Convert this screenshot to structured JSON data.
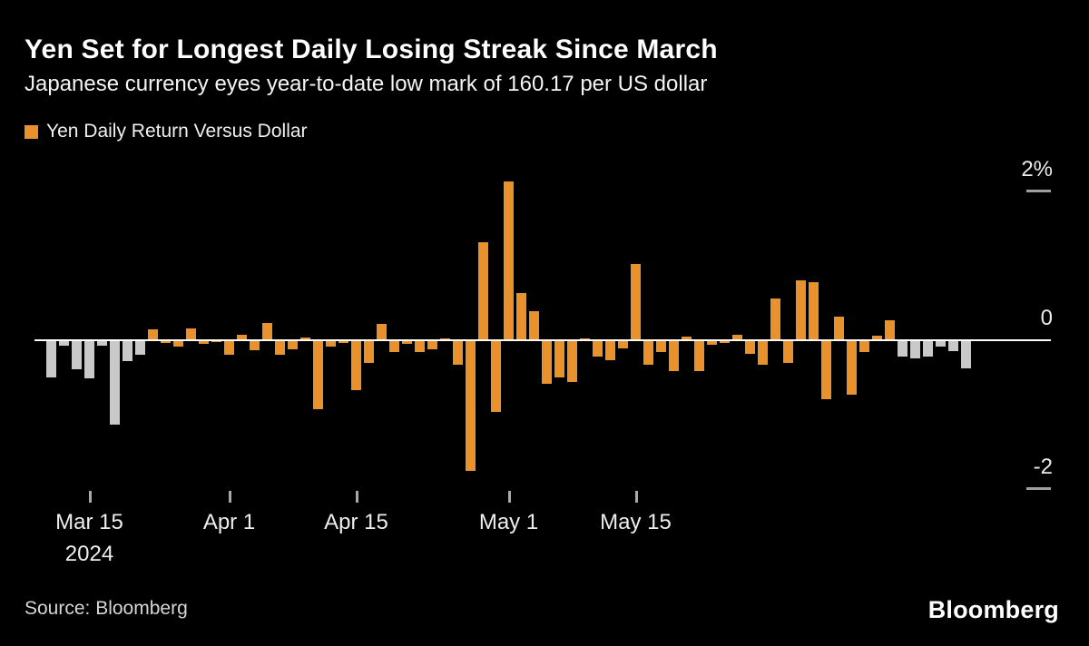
{
  "header": {
    "title": "Yen Set for Longest Daily Losing Streak Since March",
    "subtitle": "Japanese currency eyes year-to-date low mark of 160.17 per US dollar"
  },
  "legend": {
    "label": "Yen Daily Return Versus Dollar",
    "swatch_color": "#e8912d"
  },
  "chart_data": {
    "type": "bar",
    "title": "Yen Set for Longest Daily Losing Streak Since March",
    "subtitle": "Japanese currency eyes year-to-date low mark of 160.17 per US dollar",
    "series_name": "Yen Daily Return Versus Dollar",
    "unit": "%",
    "ylim": [
      -2.45,
      2.45
    ],
    "grid": false,
    "legend_position": "top-left",
    "bar_color": "#e8912d",
    "streak_bar_color": "#c9c9c9",
    "background_color": "#000000",
    "y_ticks": [
      {
        "label": "2%",
        "value": 2
      },
      {
        "label": "0",
        "value": 0
      },
      {
        "label": "-2",
        "value": -2
      }
    ],
    "x_ticks": [
      {
        "label": "Mar 15",
        "sub": "2024",
        "index": 3
      },
      {
        "label": "Apr 1",
        "sub": "",
        "index": 14
      },
      {
        "label": "Apr 15",
        "sub": "",
        "index": 24
      },
      {
        "label": "May 1",
        "sub": "",
        "index": 36
      },
      {
        "label": "May 15",
        "sub": "",
        "index": 46
      }
    ],
    "values": [
      -0.5,
      -0.07,
      -0.39,
      -0.51,
      -0.07,
      -1.13,
      -0.28,
      -0.2,
      0.15,
      -0.04,
      -0.09,
      0.16,
      -0.05,
      -0.03,
      -0.2,
      0.07,
      -0.13,
      0.23,
      -0.2,
      -0.12,
      0.04,
      -0.93,
      -0.09,
      -0.04,
      -0.67,
      -0.3,
      0.22,
      -0.16,
      -0.05,
      -0.16,
      -0.12,
      0.03,
      -0.33,
      -1.75,
      1.32,
      -0.96,
      2.13,
      0.63,
      0.39,
      -0.58,
      -0.5,
      -0.56,
      0.03,
      -0.22,
      -0.27,
      -0.11,
      1.02,
      -0.33,
      -0.16,
      -0.41,
      0.05,
      -0.42,
      -0.06,
      -0.04,
      0.07,
      -0.18,
      -0.33,
      0.56,
      -0.31,
      0.81,
      0.78,
      -0.79,
      0.32,
      -0.73,
      -0.16,
      0.06,
      0.27,
      -0.22,
      -0.24,
      -0.22,
      -0.08,
      -0.15,
      -0.38
    ],
    "streak_bar_indices": [
      0,
      1,
      2,
      3,
      4,
      5,
      6,
      7,
      67,
      68,
      69,
      70,
      71,
      72
    ]
  },
  "footer": {
    "source": "Source: Bloomberg",
    "logo": "Bloomberg"
  }
}
